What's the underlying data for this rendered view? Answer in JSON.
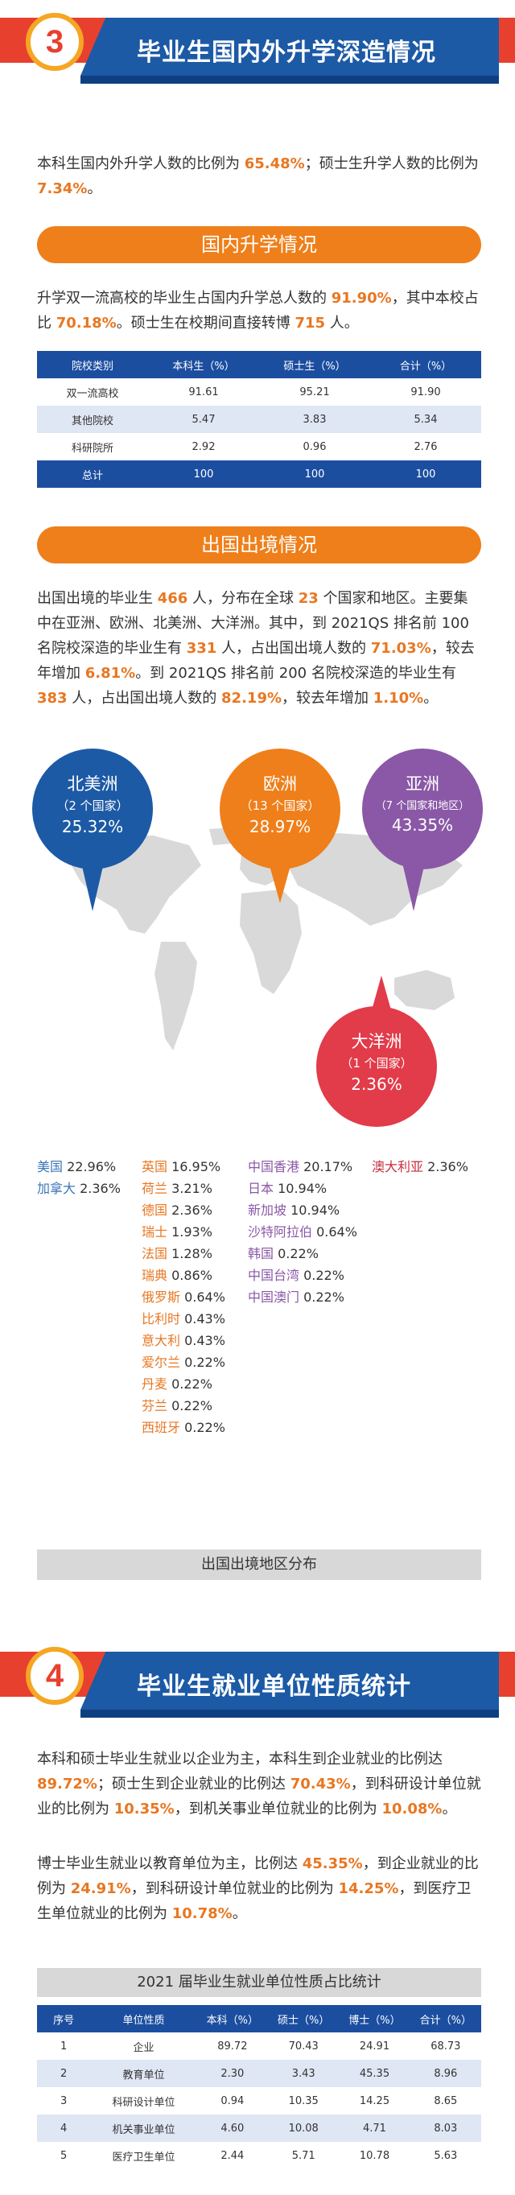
{
  "section3": {
    "number": "3",
    "title": "毕业生国内外升学深造情况",
    "intro": [
      "本科生国内外升学人数的比例为 ",
      "65.48%",
      "；硕士生升学人数的比例为 ",
      "7.34%",
      "。"
    ],
    "domestic": {
      "pill": "国内升学情况",
      "text": [
        "升学双一流高校的毕业生占国内升学总人数的 ",
        "91.90%",
        "，其中本校占比 ",
        "70.18%",
        "。硕士生在校期间直接转博 ",
        "715",
        " 人。"
      ],
      "table": {
        "headers": [
          "院校类别",
          "本科生（%）",
          "硕士生（%）",
          "合计（%）"
        ],
        "rows": [
          [
            "双一流高校",
            "91.61",
            "95.21",
            "91.90"
          ],
          [
            "其他院校",
            "5.47",
            "3.83",
            "5.34"
          ],
          [
            "科研院所",
            "2.92",
            "0.96",
            "2.76"
          ],
          [
            "总计",
            "100",
            "100",
            "100"
          ]
        ]
      }
    },
    "abroad": {
      "pill": "出国出境情况",
      "text": [
        "出国出境的毕业生 ",
        "466",
        " 人，分布在全球 ",
        "23",
        " 个国家和地区。主要集中在亚洲、欧洲、北美洲、大洋洲。其中，到 2021QS 排名前 100 名院校深造的毕业生有 ",
        "331",
        " 人，占出国出境人数的 ",
        "71.03%",
        "，较去年增加 ",
        "6.81%",
        "。到 2021QS 排名前 200 名院校深造的毕业生有 ",
        "383",
        " 人，占出国出境人数的 ",
        "82.19%",
        "，较去年增加 ",
        "1.10%",
        "。"
      ],
      "bubbles": [
        {
          "name": "北美洲",
          "sub": "（2 个国家）",
          "pct": "25.32%",
          "color": "#1c5aa6"
        },
        {
          "name": "欧洲",
          "sub": "（13 个国家）",
          "pct": "28.97%",
          "color": "#ef7f1a"
        },
        {
          "name": "亚洲",
          "sub": "（7 个国家和地区）",
          "pct": "43.35%",
          "color": "#8a58a6"
        },
        {
          "name": "大洋洲",
          "sub": "（1 个国家）",
          "pct": "2.36%",
          "color": "#e23b4a"
        }
      ],
      "countries": {
        "north_america": [
          [
            "美国",
            "22.96%"
          ],
          [
            "加拿大",
            "2.36%"
          ]
        ],
        "europe": [
          [
            "英国",
            "16.95%"
          ],
          [
            "荷兰",
            "3.21%"
          ],
          [
            "德国",
            "2.36%"
          ],
          [
            "瑞士",
            "1.93%"
          ],
          [
            "法国",
            "1.28%"
          ],
          [
            "瑞典",
            "0.86%"
          ],
          [
            "俄罗斯",
            "0.64%"
          ],
          [
            "比利时",
            "0.43%"
          ],
          [
            "意大利",
            "0.43%"
          ],
          [
            "爱尔兰",
            "0.22%"
          ],
          [
            "丹麦",
            "0.22%"
          ],
          [
            "芬兰",
            "0.22%"
          ],
          [
            "西班牙",
            "0.22%"
          ]
        ],
        "asia": [
          [
            "中国香港",
            "20.17%"
          ],
          [
            "日本",
            "10.94%"
          ],
          [
            "新加坡",
            "10.94%"
          ],
          [
            "沙特阿拉伯",
            "0.64%"
          ],
          [
            "韩国",
            "0.22%"
          ],
          [
            "中国台湾",
            "0.22%"
          ],
          [
            "中国澳门",
            "0.22%"
          ]
        ],
        "oceania": [
          [
            "澳大利亚",
            "2.36%"
          ]
        ]
      },
      "caption": "出国出境地区分布"
    }
  },
  "section4": {
    "number": "4",
    "title": "毕业生就业单位性质统计",
    "p1": [
      "本科和硕士毕业生就业以企业为主，本科生到企业就业的比例达 ",
      "89.72%",
      "；硕士生到企业就业的比例达 ",
      "70.43%",
      "，到科研设计单位就业的比例为 ",
      "10.35%",
      "，到机关事业单位就业的比例为 ",
      "10.08%",
      "。"
    ],
    "p2": [
      "博士毕业生就业以教育单位为主，比例达 ",
      "45.35%",
      "，到企业就业的比例为 ",
      "24.91%",
      "，到科研设计单位就业的比例为 ",
      "14.25%",
      "，到医疗卫生单位就业的比例为 ",
      "10.78%",
      "。"
    ],
    "table_title": "2021 届毕业生就业单位性质占比统计",
    "table": {
      "headers": [
        "序号",
        "单位性质",
        "本科（%）",
        "硕士（%）",
        "博士（%）",
        "合计（%）"
      ],
      "rows": [
        [
          "1",
          "企业",
          "89.72",
          "70.43",
          "24.91",
          "68.73"
        ],
        [
          "2",
          "教育单位",
          "2.30",
          "3.43",
          "45.35",
          "8.96"
        ],
        [
          "3",
          "科研设计单位",
          "0.94",
          "10.35",
          "14.25",
          "8.65"
        ],
        [
          "4",
          "机关事业单位",
          "4.60",
          "10.08",
          "4.71",
          "8.03"
        ],
        [
          "5",
          "医疗卫生单位",
          "2.44",
          "5.71",
          "10.78",
          "5.63"
        ]
      ]
    }
  }
}
